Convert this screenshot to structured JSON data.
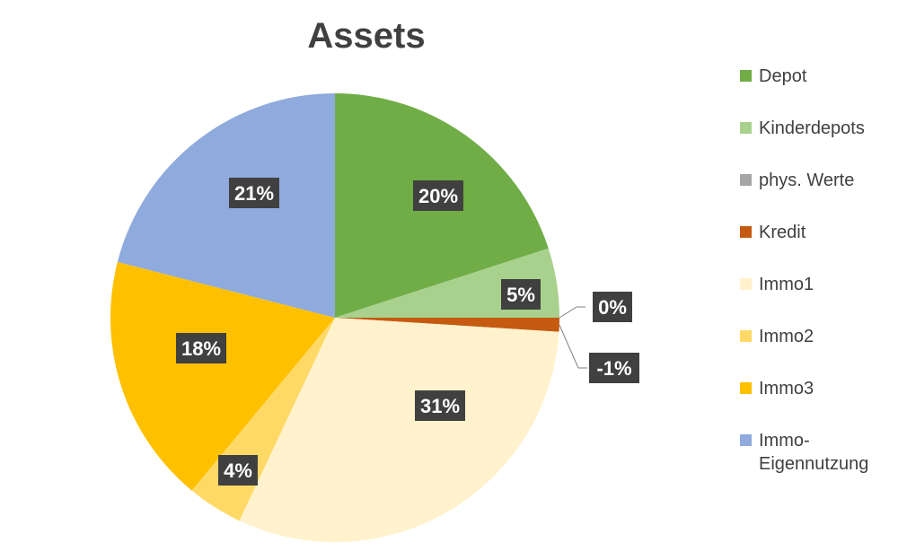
{
  "chart_data": {
    "type": "pie",
    "title": "Assets",
    "start_angle_deg": 0,
    "direction": "clockwise",
    "legend_position": "right",
    "slices": [
      {
        "name": "Depot",
        "value": 20,
        "label": "20%",
        "color": "#70AD47"
      },
      {
        "name": "Kinderdepots",
        "value": 5,
        "label": "5%",
        "color": "#A9D18E"
      },
      {
        "name": "phys. Werte",
        "value": 0,
        "label": "0%",
        "color": "#A5A5A5"
      },
      {
        "name": "Kredit",
        "value": -1,
        "label": "-1%",
        "color": "#C55A11"
      },
      {
        "name": "Immo1",
        "value": 31,
        "label": "31%",
        "color": "#FFF2CC"
      },
      {
        "name": "Immo2",
        "value": 4,
        "label": "4%",
        "color": "#FFD966"
      },
      {
        "name": "Immo3",
        "value": 18,
        "label": "18%",
        "color": "#FFC000"
      },
      {
        "name": "Immo-Eigennutzung",
        "value": 21,
        "label": "21%",
        "color": "#8FAADC"
      }
    ],
    "legend": {
      "items": [
        {
          "label": "Depot",
          "color": "#70AD47"
        },
        {
          "label": "Kinderdepots",
          "color": "#A9D18E"
        },
        {
          "label": "phys. Werte",
          "color": "#A5A5A5"
        },
        {
          "label": "Kredit",
          "color": "#C55A11"
        },
        {
          "label": "Immo1",
          "color": "#FFF2CC"
        },
        {
          "label": "Immo2",
          "color": "#FFD966"
        },
        {
          "label": "Immo3",
          "color": "#FFC000"
        },
        {
          "label": "Immo-Eigennutzung",
          "color": "#8FAADC"
        }
      ]
    }
  }
}
